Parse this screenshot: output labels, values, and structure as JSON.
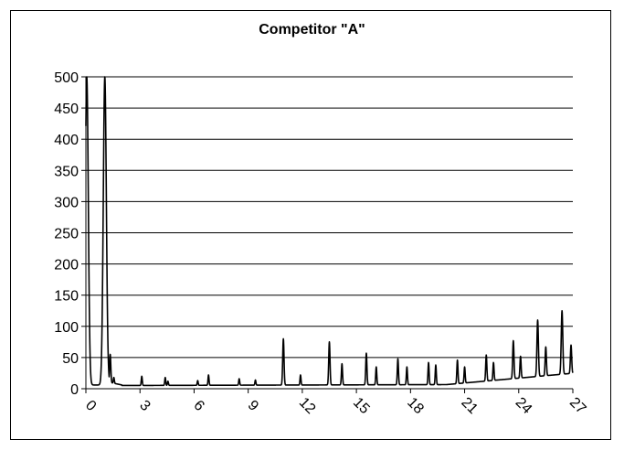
{
  "chart_data": {
    "type": "line",
    "title": "Competitor \"A\"",
    "xlabel": "",
    "ylabel": "",
    "xlim": [
      0,
      27
    ],
    "ylim": [
      0,
      500
    ],
    "xticks": [
      "0",
      "3",
      "6",
      "9",
      "12",
      "15",
      "18",
      "21",
      "24",
      "27"
    ],
    "yticks": [
      "0",
      "50",
      "100",
      "150",
      "200",
      "250",
      "300",
      "350",
      "400",
      "450",
      "500"
    ],
    "grid": "horizontal",
    "legend": "none",
    "line_color": "#000000",
    "peaks": [
      {
        "x": 0.05,
        "y": 500
      },
      {
        "x": 1.05,
        "y": 500
      },
      {
        "x": 1.35,
        "y": 55
      },
      {
        "x": 1.55,
        "y": 18
      },
      {
        "x": 3.1,
        "y": 20
      },
      {
        "x": 4.4,
        "y": 18
      },
      {
        "x": 4.55,
        "y": 12
      },
      {
        "x": 6.2,
        "y": 13
      },
      {
        "x": 6.8,
        "y": 22
      },
      {
        "x": 8.5,
        "y": 16
      },
      {
        "x": 9.4,
        "y": 14
      },
      {
        "x": 10.95,
        "y": 80
      },
      {
        "x": 11.9,
        "y": 22
      },
      {
        "x": 13.5,
        "y": 75
      },
      {
        "x": 14.2,
        "y": 40
      },
      {
        "x": 15.55,
        "y": 57
      },
      {
        "x": 16.1,
        "y": 35
      },
      {
        "x": 17.3,
        "y": 48
      },
      {
        "x": 17.8,
        "y": 35
      },
      {
        "x": 19.0,
        "y": 42
      },
      {
        "x": 19.4,
        "y": 38
      },
      {
        "x": 20.6,
        "y": 46
      },
      {
        "x": 21.0,
        "y": 35
      },
      {
        "x": 22.2,
        "y": 54
      },
      {
        "x": 22.6,
        "y": 42
      },
      {
        "x": 23.7,
        "y": 77
      },
      {
        "x": 24.1,
        "y": 52
      },
      {
        "x": 25.05,
        "y": 110
      },
      {
        "x": 25.5,
        "y": 67
      },
      {
        "x": 26.4,
        "y": 125
      },
      {
        "x": 26.9,
        "y": 70
      }
    ]
  }
}
